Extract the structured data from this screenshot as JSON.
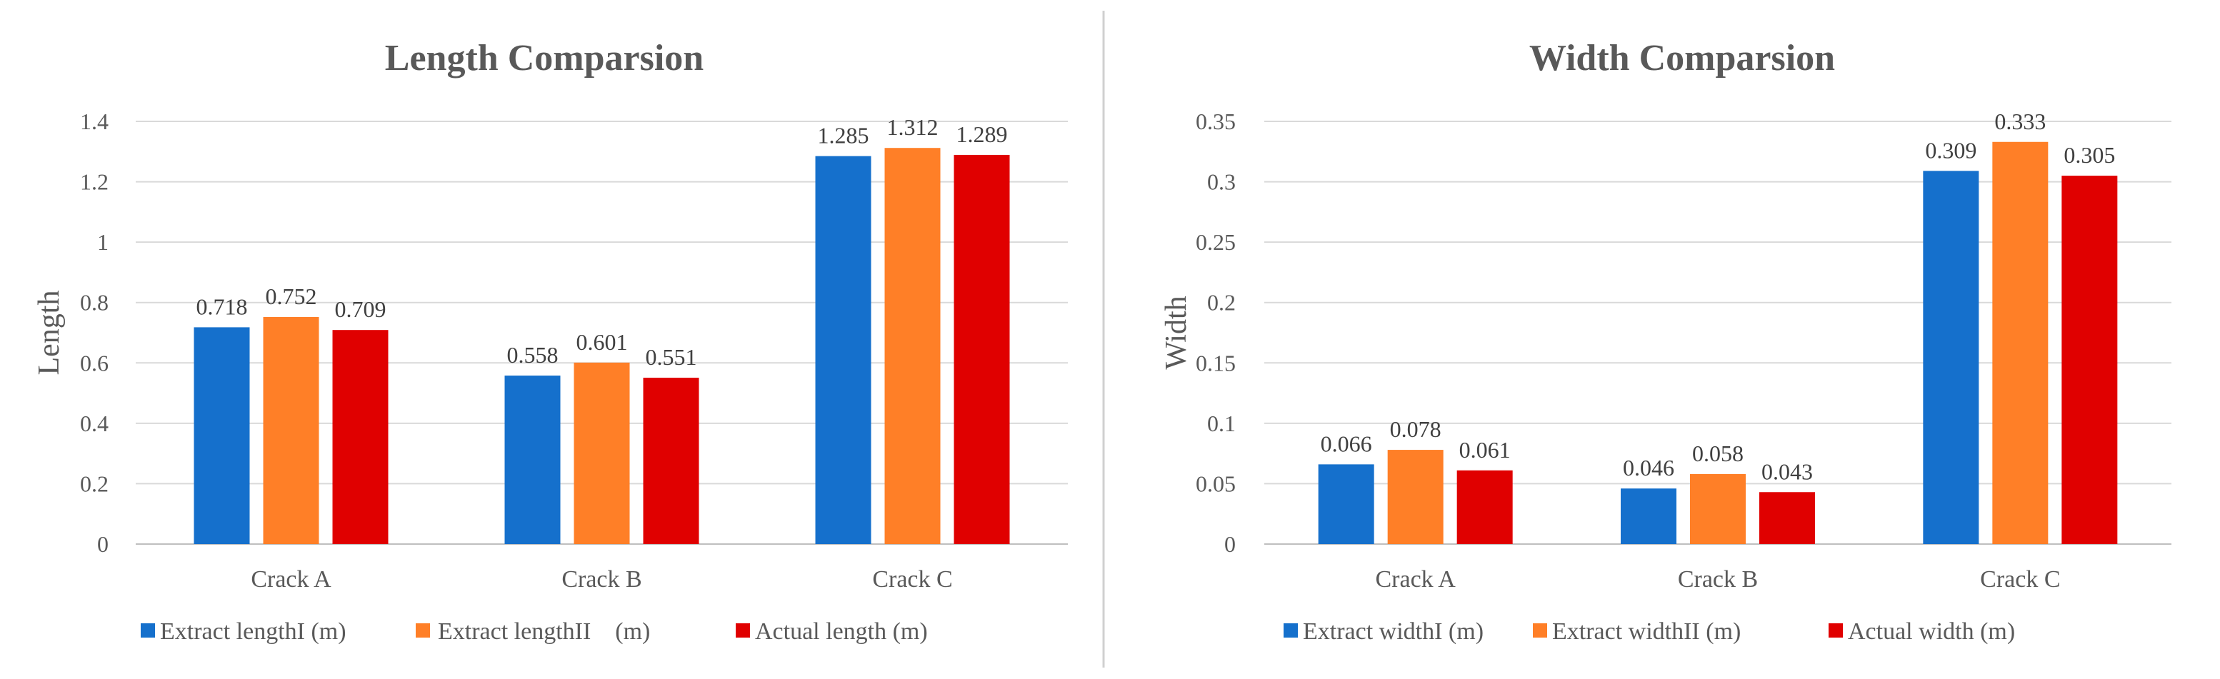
{
  "colors": {
    "series1": "#1570CC",
    "series2": "#FF7F27",
    "series3": "#E00000"
  },
  "chart_data": [
    {
      "type": "bar",
      "title": "Length Comparsion",
      "xlabel": "",
      "ylabel": "Length",
      "ylim": [
        0,
        1.4
      ],
      "yticks": [
        "0",
        "0.2",
        "0.4",
        "0.6",
        "0.8",
        "1",
        "1.2",
        "1.4"
      ],
      "ytick_values": [
        0,
        0.2,
        0.4,
        0.6,
        0.8,
        1,
        1.2,
        1.4
      ],
      "grid": true,
      "legend_position": "bottom",
      "categories": [
        "Crack A",
        "Crack B",
        "Crack C"
      ],
      "series": [
        {
          "name": "Extract lengthI (m)",
          "values": [
            0.718,
            0.558,
            1.285
          ],
          "labels": [
            "0.718",
            "0.558",
            "1.285"
          ]
        },
        {
          "name": "Extract lengthII　(m)",
          "values": [
            0.752,
            0.601,
            1.312
          ],
          "labels": [
            "0.752",
            "0.601",
            "1.312"
          ]
        },
        {
          "name": "Actual length (m)",
          "values": [
            0.709,
            0.551,
            1.289
          ],
          "labels": [
            "0.709",
            "0.551",
            "1.289"
          ]
        }
      ]
    },
    {
      "type": "bar",
      "title": "Width Comparsion",
      "xlabel": "",
      "ylabel": "Width",
      "ylim": [
        0,
        0.35
      ],
      "yticks": [
        "0",
        "0.05",
        "0.1",
        "0.15",
        "0.2",
        "0.25",
        "0.3",
        "0.35"
      ],
      "ytick_values": [
        0,
        0.05,
        0.1,
        0.15,
        0.2,
        0.25,
        0.3,
        0.35
      ],
      "grid": true,
      "legend_position": "bottom",
      "categories": [
        "Crack A",
        "Crack B",
        "Crack C"
      ],
      "series": [
        {
          "name": "Extract widthI (m)",
          "values": [
            0.066,
            0.046,
            0.309
          ],
          "labels": [
            "0.066",
            "0.046",
            "0.309"
          ]
        },
        {
          "name": "Extract widthII (m)",
          "values": [
            0.078,
            0.058,
            0.333
          ],
          "labels": [
            "0.078",
            "0.058",
            "0.333"
          ]
        },
        {
          "name": "Actual width (m)",
          "values": [
            0.061,
            0.043,
            0.305
          ],
          "labels": [
            "0.061",
            "0.043",
            "0.305"
          ]
        }
      ]
    }
  ]
}
